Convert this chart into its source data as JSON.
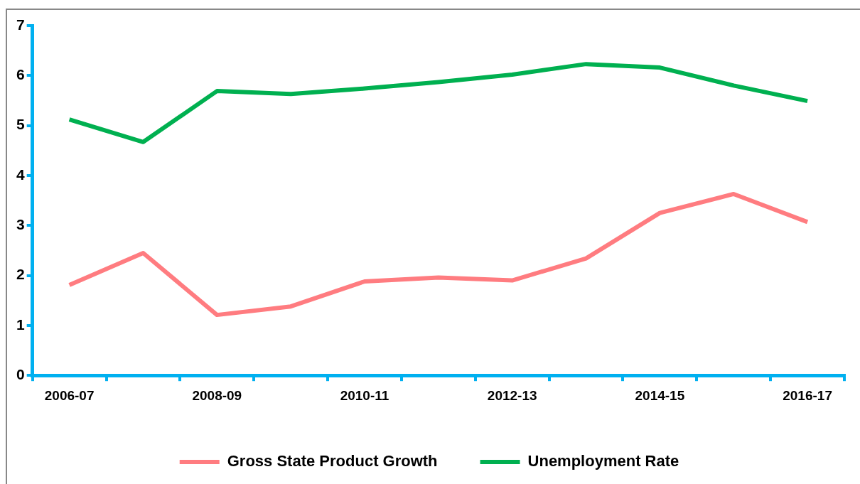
{
  "chart_data": {
    "type": "line",
    "categories": [
      "2006-07",
      null,
      "2008-09",
      null,
      "2010-11",
      null,
      "2012-13",
      null,
      "2014-15",
      null,
      "2016-17"
    ],
    "series": [
      {
        "name": "Gross State Product Growth",
        "color": "#ff7c80",
        "values": [
          1.81,
          2.45,
          1.21,
          1.38,
          1.88,
          1.96,
          1.9,
          2.34,
          3.25,
          3.63,
          3.07
        ]
      },
      {
        "name": "Unemployment Rate",
        "color": "#00b050",
        "values": [
          5.12,
          4.67,
          5.69,
          5.63,
          5.74,
          5.87,
          6.02,
          6.23,
          6.16,
          5.8,
          5.49
        ]
      }
    ],
    "ylim": [
      0,
      7
    ],
    "yticks": [
      0,
      1,
      2,
      3,
      4,
      5,
      6,
      7
    ],
    "grid": false,
    "legend": "bottom",
    "marker": "none",
    "line_style": "solid"
  }
}
